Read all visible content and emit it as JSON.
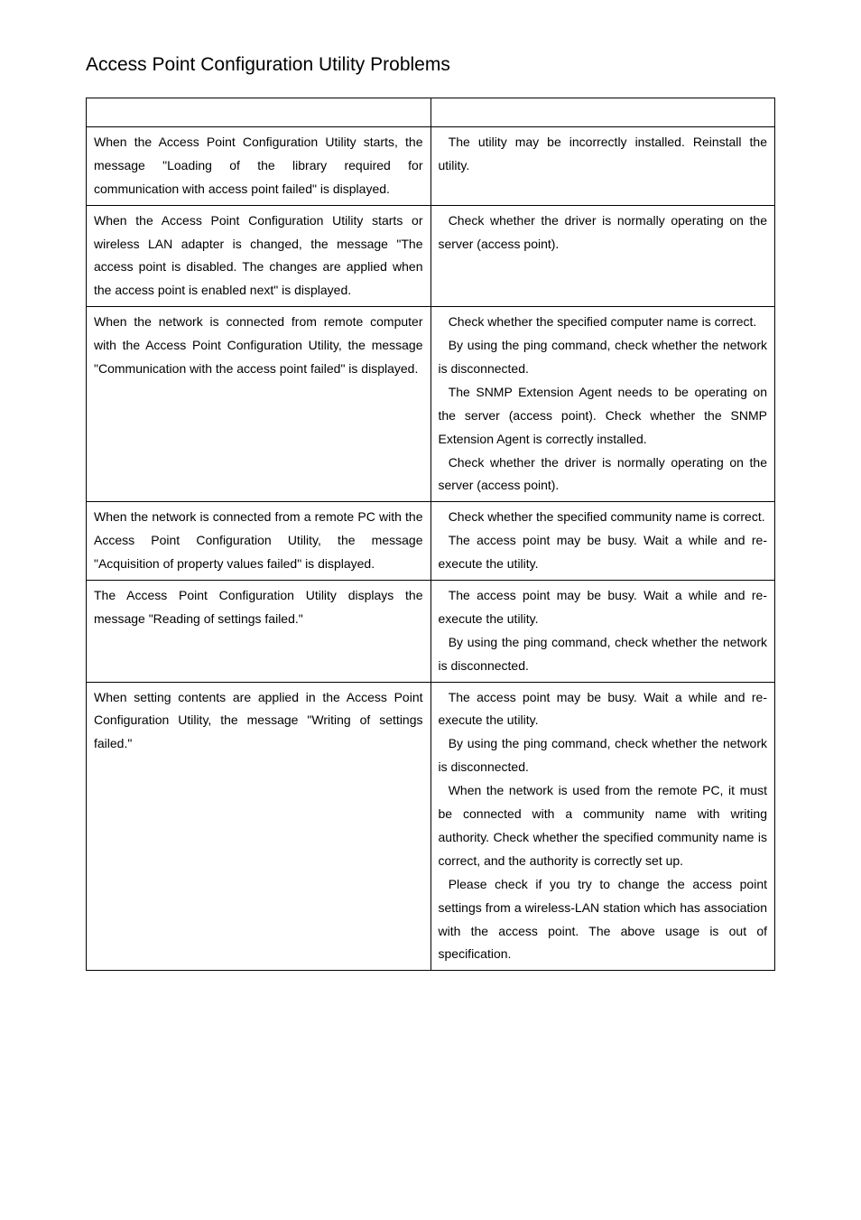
{
  "heading": "Access Point Configuration Utility Problems",
  "table": {
    "rows": [
      {
        "problem": "When the Access Point Configuration Utility starts, the message \"Loading of the library required for communication with access point failed\" is displayed.",
        "solutions": [
          "The utility may be incorrectly installed.  Reinstall the utility."
        ]
      },
      {
        "problem": "When the Access Point Configuration Utility starts or wireless LAN adapter is changed, the message \"The access point is disabled. The changes are applied when the access point is enabled next\" is displayed.",
        "solutions": [
          "Check whether the driver is normally operating on the server (access point)."
        ]
      },
      {
        "problem": "When the network is connected from remote computer with the Access Point Configuration Utility, the message \"Communication with the access point failed\" is displayed.",
        "solutions": [
          "Check whether the specified computer name is correct.",
          "By using the ping command, check whether the network is disconnected.",
          "The SNMP Extension Agent needs to be operating on the server (access point).  Check whether the SNMP Extension Agent is correctly installed.",
          "Check whether the driver is normally operating on the server (access point)."
        ]
      },
      {
        "problem": "When the network is connected from a remote PC with the Access Point Configuration Utility, the message \"Acquisition of property values failed\" is displayed.",
        "solutions": [
          "Check whether the specified community name is correct.",
          "The access point may be busy.  Wait a while and re-execute the utility."
        ]
      },
      {
        "problem": "The Access Point Configuration Utility displays the message \"Reading of settings failed.\"",
        "solutions": [
          "The access point may be busy.  Wait a while and re-execute the utility.",
          "By using the ping command, check whether the network is disconnected."
        ]
      },
      {
        "problem": "When setting contents are applied in the Access Point Configuration Utility, the message \"Writing of settings failed.\"",
        "solutions": [
          "The access point may be busy.  Wait a while and re-execute the utility.",
          "By using the ping command, check whether the network is disconnected.",
          "When the network is used from the remote PC, it must be connected with a community name with writing authority.  Check whether the specified community name is correct, and the authority is correctly set up.",
          "Please check if you try to change the access point settings from a wireless-LAN station which has association with the access point.  The above usage is out of specification."
        ]
      }
    ]
  },
  "styling": {
    "background_color": "#ffffff",
    "text_color": "#000000",
    "border_color": "#000000",
    "heading_fontsize": 21,
    "cell_fontsize": 14,
    "line_height": 1.85,
    "font_family": "Arial"
  }
}
